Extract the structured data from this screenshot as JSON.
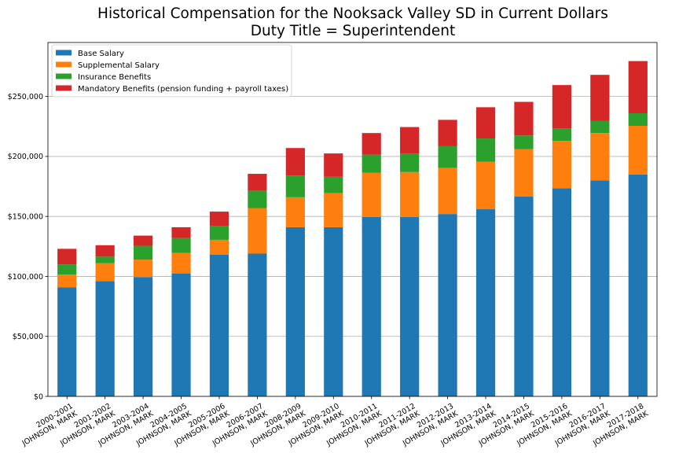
{
  "chart_data": {
    "type": "bar",
    "stacked": true,
    "title": "Historical Compensation for the Nooksack Valley SD in Current Dollars",
    "subtitle": "Duty Title = Superintendent",
    "xlabel": "",
    "ylabel": "",
    "ylim": [
      0,
      295000
    ],
    "yticks": [
      0,
      50000,
      100000,
      150000,
      200000,
      250000
    ],
    "ytick_labels": [
      "$0",
      "$50,000",
      "$100,000",
      "$150,000",
      "$200,000",
      "$250,000"
    ],
    "grid": "horizontal",
    "legend_position": "top-left",
    "categories": [
      [
        "2000-2001",
        "JOHNSON, MARK"
      ],
      [
        "2001-2002",
        "JOHNSON, MARK"
      ],
      [
        "2003-2004",
        "JOHNSON, MARK"
      ],
      [
        "2004-2005",
        "JOHNSON, MARK"
      ],
      [
        "2005-2006",
        "JOHNSON, MARK"
      ],
      [
        "2006-2007",
        "JOHNSON, MARK"
      ],
      [
        "2008-2009",
        "JOHNSON, MARK"
      ],
      [
        "2009-2010",
        "JOHNSON, MARK"
      ],
      [
        "2010-2011",
        "JOHNSON, MARK"
      ],
      [
        "2011-2012",
        "JOHNSON, MARK"
      ],
      [
        "2012-2013",
        "JOHNSON, MARK"
      ],
      [
        "2013-2014",
        "JOHNSON, MARK"
      ],
      [
        "2014-2015",
        "JOHNSON, MARK"
      ],
      [
        "2015-2016",
        "JOHNSON, MARK"
      ],
      [
        "2016-2017",
        "JOHNSON, MARK"
      ],
      [
        "2017-2018",
        "JOHNSON, MARK"
      ]
    ],
    "series": [
      {
        "name": "Base Salary",
        "color": "#1f77b4",
        "values": [
          91000,
          96000,
          99500,
          102500,
          118000,
          119000,
          141000,
          141000,
          149500,
          149500,
          152000,
          156000,
          166500,
          173500,
          180000,
          185000
        ]
      },
      {
        "name": "Supplemental Salary",
        "color": "#ff7f0e",
        "values": [
          10500,
          15000,
          14500,
          17000,
          12500,
          38000,
          25000,
          28500,
          37000,
          37500,
          38500,
          39500,
          39500,
          39500,
          39500,
          40500
        ]
      },
      {
        "name": "Insurance Benefits",
        "color": "#2ca02c",
        "values": [
          8500,
          5500,
          11500,
          12500,
          11500,
          14500,
          18000,
          13500,
          15000,
          15500,
          18000,
          19500,
          11500,
          10500,
          10000,
          10500
        ]
      },
      {
        "name": "Mandatory Benefits (pension funding + payroll taxes)",
        "color": "#d62728",
        "values": [
          13000,
          9500,
          8500,
          9000,
          12000,
          14000,
          23000,
          19500,
          18000,
          22000,
          22000,
          26000,
          28000,
          36000,
          38500,
          43500
        ]
      }
    ]
  }
}
